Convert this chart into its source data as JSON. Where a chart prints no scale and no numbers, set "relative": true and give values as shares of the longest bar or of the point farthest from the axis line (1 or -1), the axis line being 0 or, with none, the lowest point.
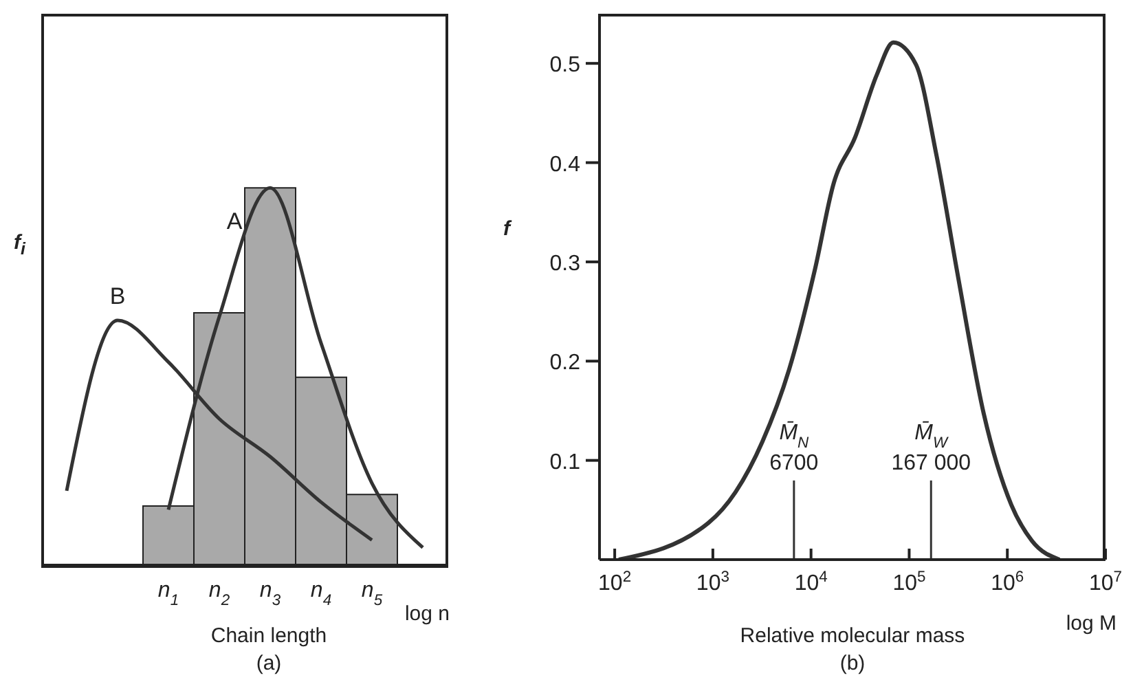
{
  "chart_data": [
    {
      "type": "bar",
      "xlabel": "Chain length",
      "ylabel": "f$_{i}$",
      "relative": true,
      "marker": "none",
      "categories": [
        null,
        null,
        "n$_{1}$",
        "n$_{2}$",
        "n$_{3}$",
        "n$_{4}$",
        "n$_{5}$",
        null
      ],
      "series": [
        {
          "color": "#a9a9a9",
          "values": [
            null,
            null,
            0.16,
            0.67,
            1,
            0.5,
            0.19,
            null
          ]
        },
        {
          "type": "line",
          "name": "A",
          "color": "#333333",
          "values": [
            null,
            null,
            0.15,
            0.66,
            1,
            0.59,
            0.22,
            0.05
          ]
        },
        {
          "type": "line",
          "name": "B",
          "color": "#333333",
          "values": [
            0.2,
            0.65,
            0.54,
            0.39,
            0.29,
            0.17,
            0.07,
            null
          ]
        }
      ],
      "annotations": [
        "log n",
        "(a)"
      ]
    },
    {
      "type": "line",
      "xlabel": "Relative molecular mass",
      "ylabel": "f",
      "log": "x",
      "marker": "none",
      "xlim": [
        70,
        10000000
      ],
      "xticks": [
        {
          "value": 100,
          "label": "10$^{2}$"
        },
        {
          "value": 1000,
          "label": "10$^{3}$"
        },
        {
          "value": 10000,
          "label": "10$^{4}$"
        },
        {
          "value": 100000,
          "label": "10$^{5}$"
        },
        {
          "value": 1000000,
          "label": "10$^{6}$"
        },
        {
          "value": 10000000,
          "label": "10$^{7}$"
        }
      ],
      "ylim": [
        0,
        0.55
      ],
      "yticks": [
        0.1,
        0.2,
        0.3,
        0.4,
        0.5
      ],
      "series": [
        {
          "color": "#333333",
          "x": [
            110,
            900,
            1700,
            3200,
            6000,
            11000,
            17000,
            28000,
            47000,
            69000,
            117000,
            190000,
            316000,
            575000,
            1100000,
            1780000,
            3400000
          ],
          "values": [
            0,
            0.037,
            0.068,
            0.119,
            0.192,
            0.293,
            0.379,
            0.425,
            0.489,
            0.521,
            0.499,
            0.407,
            0.284,
            0.147,
            0.055,
            0.019,
            0
          ]
        }
      ],
      "ref_lines": [
        {
          "axis": "x",
          "value": 6700,
          "label": "M̄$_{N}$\n6700",
          "color": "#333333"
        },
        {
          "axis": "x",
          "value": 167000,
          "label": "M̄$_{W}$\n167 000",
          "color": "#333333"
        }
      ],
      "annotations": [
        "log M",
        "(b)"
      ]
    }
  ]
}
